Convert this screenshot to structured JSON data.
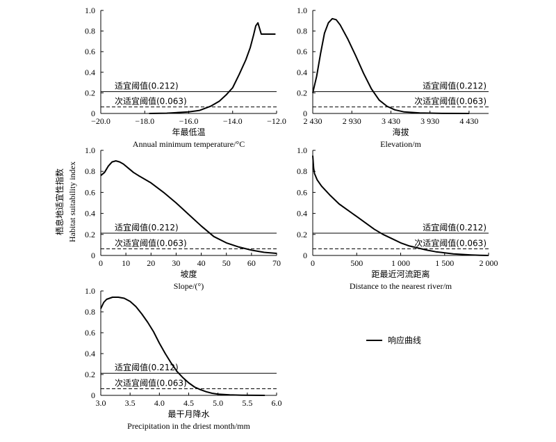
{
  "y_axis_title_cn": "栖息地适宜性指数",
  "y_axis_title_en": "Habitat suitability index",
  "legend_label": "响应曲线",
  "chart_data": [
    {
      "type": "line",
      "xlabel_cn": "年最低温",
      "xlabel_en": "Annual minimum temperature/°C",
      "xlim": [
        -20,
        -12
      ],
      "ylim": [
        0,
        1
      ],
      "xticks": [
        "−20.0",
        "−18.0",
        "−16.0",
        "−14.0",
        "−12.0"
      ],
      "xtick_values": [
        -20,
        -18,
        -16,
        -14,
        -12
      ],
      "yticks": [
        "0",
        "0.2",
        "0.4",
        "0.6",
        "0.8",
        "1.0"
      ],
      "ytick_values": [
        0,
        0.2,
        0.4,
        0.6,
        0.8,
        1.0
      ],
      "thresholds": [
        {
          "label": "适宜阈值(0.212)",
          "value": 0.212,
          "style": "solid"
        },
        {
          "label": "次适宜阈值(0.063)",
          "value": 0.063,
          "style": "dashed"
        }
      ],
      "series": [
        {
          "x": [
            -17.8,
            -17,
            -16,
            -15.5,
            -15,
            -14.6,
            -14.3,
            -14,
            -13.7,
            -13.4,
            -13.2,
            -13.05,
            -12.95,
            -12.85,
            -12.7,
            -12.35,
            -12.05
          ],
          "y": [
            0,
            0.003,
            0.015,
            0.03,
            0.07,
            0.12,
            0.18,
            0.25,
            0.38,
            0.52,
            0.64,
            0.76,
            0.85,
            0.88,
            0.77,
            0.77,
            0.77
          ]
        }
      ]
    },
    {
      "type": "line",
      "xlabel_cn": "海拔",
      "xlabel_en": "Elevation/m",
      "xlim": [
        2430,
        4680
      ],
      "ylim": [
        0,
        1
      ],
      "xticks": [
        "2 430",
        "2 930",
        "3 430",
        "3 930",
        "4 430"
      ],
      "xtick_values": [
        2430,
        2930,
        3430,
        3930,
        4430
      ],
      "yticks": [
        "0",
        "0.2",
        "0.4",
        "0.6",
        "0.8",
        "1.0"
      ],
      "ytick_values": [
        0,
        0.2,
        0.4,
        0.6,
        0.8,
        1.0
      ],
      "thresholds": [
        {
          "label": "适宜阈值(0.212)",
          "value": 0.212,
          "style": "solid"
        },
        {
          "label": "次适宜阈值(0.063)",
          "value": 0.063,
          "style": "dashed"
        }
      ],
      "series": [
        {
          "x": [
            2430,
            2480,
            2530,
            2580,
            2630,
            2680,
            2730,
            2780,
            2880,
            2980,
            3080,
            3180,
            3280,
            3380,
            3480,
            3600,
            3800,
            4100,
            4430
          ],
          "y": [
            0.2,
            0.36,
            0.58,
            0.78,
            0.88,
            0.92,
            0.91,
            0.86,
            0.72,
            0.56,
            0.39,
            0.24,
            0.13,
            0.07,
            0.035,
            0.015,
            0.005,
            0.001,
            0
          ]
        }
      ]
    },
    {
      "type": "line",
      "xlabel_cn": "坡度",
      "xlabel_en": "Slope/(°)",
      "xlim": [
        0,
        70
      ],
      "ylim": [
        0,
        1
      ],
      "xticks": [
        "0",
        "10",
        "20",
        "30",
        "40",
        "50",
        "60",
        "70"
      ],
      "xtick_values": [
        0,
        10,
        20,
        30,
        40,
        50,
        60,
        70
      ],
      "yticks": [
        "0",
        "0.2",
        "0.4",
        "0.6",
        "0.8",
        "1.0"
      ],
      "ytick_values": [
        0,
        0.2,
        0.4,
        0.6,
        0.8,
        1.0
      ],
      "thresholds": [
        {
          "label": "适宜阈值(0.212)",
          "value": 0.212,
          "style": "solid"
        },
        {
          "label": "次适宜阈值(0.063)",
          "value": 0.063,
          "style": "dashed"
        }
      ],
      "series": [
        {
          "x": [
            0,
            1.5,
            3,
            4.5,
            6,
            7.5,
            9,
            11,
            13,
            15,
            20,
            25,
            30,
            35,
            40,
            45,
            50,
            55,
            60,
            65,
            70
          ],
          "y": [
            0.76,
            0.79,
            0.85,
            0.89,
            0.9,
            0.89,
            0.87,
            0.83,
            0.79,
            0.76,
            0.69,
            0.6,
            0.5,
            0.39,
            0.28,
            0.18,
            0.12,
            0.08,
            0.05,
            0.03,
            0.02
          ]
        }
      ]
    },
    {
      "type": "line",
      "xlabel_cn": "距最近河流距离",
      "xlabel_en": "Distance to the nearest river/m",
      "xlim": [
        0,
        2000
      ],
      "ylim": [
        0,
        1
      ],
      "xticks": [
        "0",
        "500",
        "1 000",
        "1 500",
        "2 000"
      ],
      "xtick_values": [
        0,
        500,
        1000,
        1500,
        2000
      ],
      "yticks": [
        "0",
        "0.2",
        "0.4",
        "0.6",
        "0.8",
        "1.0"
      ],
      "ytick_values": [
        0,
        0.2,
        0.4,
        0.6,
        0.8,
        1.0
      ],
      "thresholds": [
        {
          "label": "适宜阈值(0.212)",
          "value": 0.212,
          "style": "solid"
        },
        {
          "label": "次适宜阈值(0.063)",
          "value": 0.063,
          "style": "dashed"
        }
      ],
      "series": [
        {
          "x": [
            0,
            10,
            20,
            50,
            100,
            200,
            300,
            400,
            500,
            600,
            700,
            800,
            900,
            1000,
            1100,
            1200,
            1300,
            1400,
            1500,
            1600,
            1700,
            1800,
            1900,
            2000
          ],
          "y": [
            0.95,
            0.83,
            0.78,
            0.72,
            0.66,
            0.57,
            0.49,
            0.43,
            0.37,
            0.31,
            0.25,
            0.2,
            0.16,
            0.12,
            0.09,
            0.07,
            0.05,
            0.035,
            0.025,
            0.015,
            0.01,
            0.005,
            0.002,
            0
          ]
        }
      ]
    },
    {
      "type": "line",
      "xlabel_cn": "最干月降水",
      "xlabel_en": "Precipitation in the driest month/mm",
      "xlim": [
        3.0,
        6.0
      ],
      "ylim": [
        0,
        1
      ],
      "xticks": [
        "3.0",
        "3.5",
        "4.0",
        "4.5",
        "5.0",
        "5.5",
        "6.0"
      ],
      "xtick_values": [
        3.0,
        3.5,
        4.0,
        4.5,
        5.0,
        5.5,
        6.0
      ],
      "yticks": [
        "0",
        "0.2",
        "0.4",
        "0.6",
        "0.8",
        "1.0"
      ],
      "ytick_values": [
        0,
        0.2,
        0.4,
        0.6,
        0.8,
        1.0
      ],
      "thresholds": [
        {
          "label": "适宜阈值(0.212)",
          "value": 0.212,
          "style": "solid"
        },
        {
          "label": "次适宜阈值(0.063)",
          "value": 0.063,
          "style": "dashed"
        }
      ],
      "series": [
        {
          "x": [
            3.0,
            3.05,
            3.1,
            3.2,
            3.3,
            3.4,
            3.5,
            3.6,
            3.7,
            3.8,
            3.9,
            4.0,
            4.1,
            4.2,
            4.3,
            4.4,
            4.5,
            4.6,
            4.7,
            4.8,
            4.9,
            5.0,
            5.2,
            5.4,
            5.6,
            5.8
          ],
          "y": [
            0.83,
            0.89,
            0.92,
            0.94,
            0.94,
            0.93,
            0.9,
            0.85,
            0.78,
            0.7,
            0.61,
            0.5,
            0.4,
            0.31,
            0.23,
            0.17,
            0.12,
            0.08,
            0.055,
            0.035,
            0.02,
            0.012,
            0.005,
            0.002,
            0.001,
            0
          ]
        }
      ]
    }
  ]
}
